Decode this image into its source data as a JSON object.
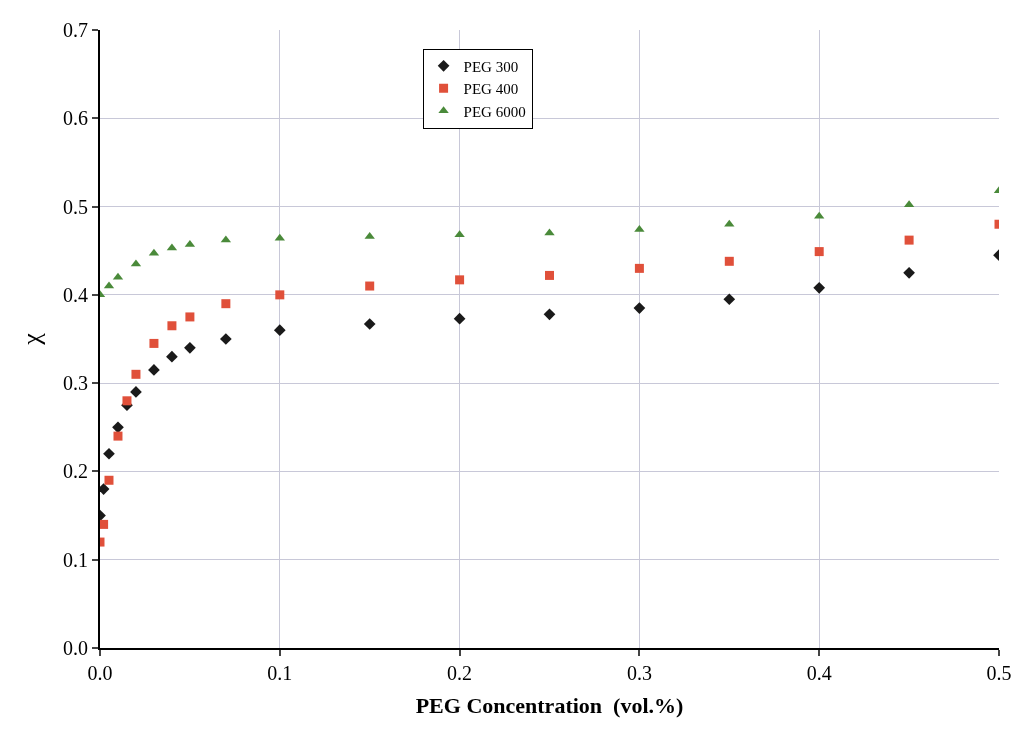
{
  "chart_data": {
    "type": "scatter",
    "xlabel": "PEG Concentration  (vol.%)",
    "ylabel": "χ",
    "xlim": [
      0,
      0.5
    ],
    "xticks": [
      {
        "value": 0,
        "label": "0.0"
      },
      0.1,
      0.2,
      0.3,
      0.4,
      0.5
    ],
    "ylim": [
      0,
      0.7
    ],
    "yticks": [
      {
        "value": 0,
        "label": "0.0"
      },
      0.1,
      0.2,
      0.3,
      0.4,
      0.5,
      0.6,
      0.7
    ],
    "grid": true,
    "legend": "top",
    "series": [
      {
        "name": "PEG 300",
        "color": "#1a1a1a",
        "marker": "diamond",
        "x": [
          0,
          0.002,
          0.005,
          0.01,
          0.015,
          0.02,
          0.03,
          0.04,
          0.05,
          0.07,
          0.1,
          0.15,
          0.2,
          0.25,
          0.3,
          0.35,
          0.4,
          0.45,
          0.5
        ],
        "values": [
          0.15,
          0.18,
          0.22,
          0.25,
          0.275,
          0.29,
          0.315,
          0.33,
          0.34,
          0.35,
          0.36,
          0.367,
          0.373,
          0.378,
          0.385,
          0.395,
          0.408,
          0.425,
          0.445
        ]
      },
      {
        "name": "PEG 400",
        "color": "#e0503a",
        "marker": "square",
        "x": [
          0,
          0.002,
          0.005,
          0.01,
          0.015,
          0.02,
          0.03,
          0.04,
          0.05,
          0.07,
          0.1,
          0.15,
          0.2,
          0.25,
          0.3,
          0.35,
          0.4,
          0.45,
          0.5
        ],
        "values": [
          0.12,
          0.14,
          0.19,
          0.24,
          0.28,
          0.31,
          0.345,
          0.365,
          0.375,
          0.39,
          0.4,
          0.41,
          0.417,
          0.422,
          0.43,
          0.438,
          0.449,
          0.462,
          0.48
        ]
      },
      {
        "name": "PEG 6000",
        "color": "#4a8a3a",
        "marker": "triangle",
        "x": [
          0,
          0.005,
          0.01,
          0.02,
          0.03,
          0.04,
          0.05,
          0.07,
          0.1,
          0.15,
          0.2,
          0.25,
          0.3,
          0.35,
          0.4,
          0.45,
          0.5
        ],
        "values": [
          0.4,
          0.41,
          0.42,
          0.435,
          0.447,
          0.453,
          0.457,
          0.462,
          0.464,
          0.466,
          0.468,
          0.47,
          0.474,
          0.48,
          0.489,
          0.502,
          0.518
        ]
      }
    ]
  }
}
